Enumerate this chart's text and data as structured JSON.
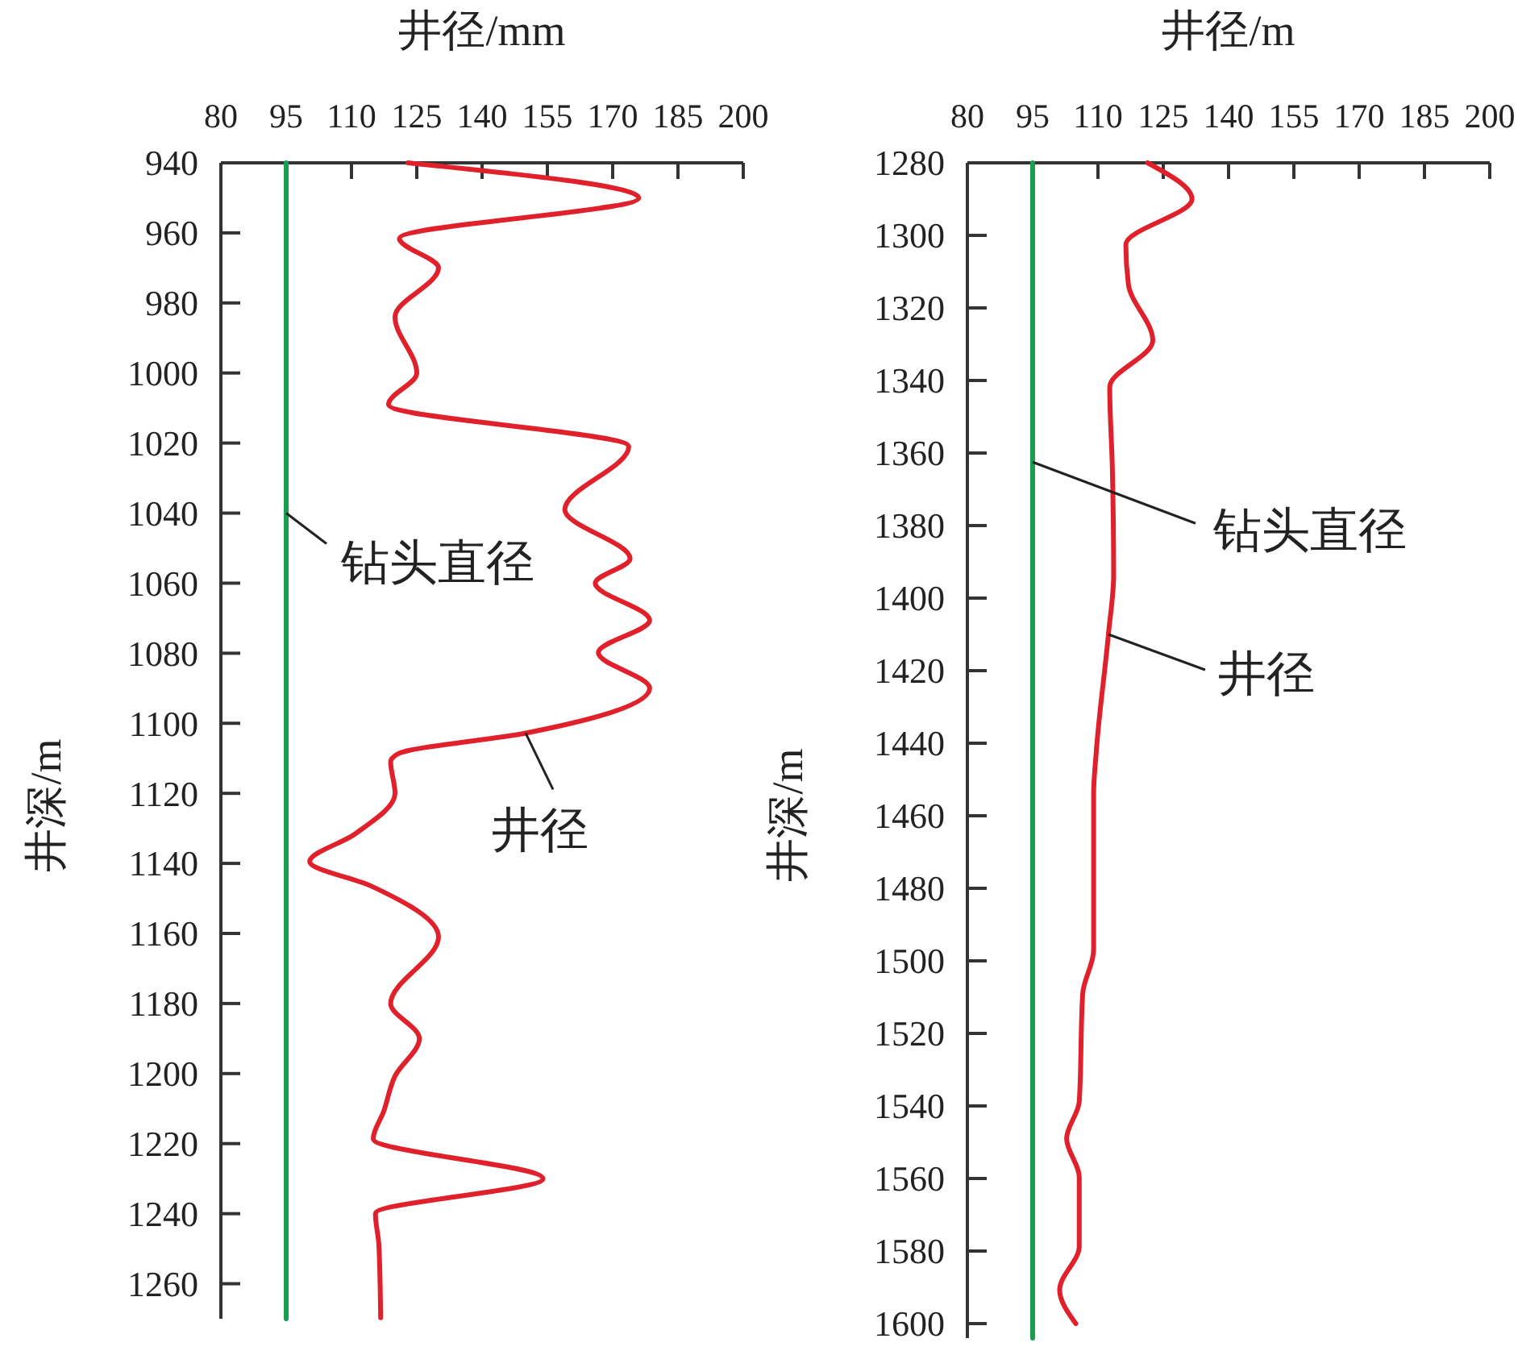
{
  "chart_data": [
    {
      "type": "line",
      "orientation": "horizontal",
      "xlabel": "井径/mm",
      "ylabel": "井深/m",
      "xlim": [
        80,
        200
      ],
      "xticks": [
        80,
        95,
        110,
        125,
        140,
        155,
        170,
        185,
        200
      ],
      "ylim": [
        1270,
        940
      ],
      "yticks": [
        940,
        960,
        980,
        1000,
        1020,
        1040,
        1060,
        1080,
        1100,
        1120,
        1140,
        1160,
        1180,
        1200,
        1220,
        1240,
        1260
      ],
      "series": [
        {
          "color": "#1a9e50",
          "x": [
            940,
            1270
          ],
          "values": [
            95,
            95
          ]
        },
        {
          "color": "#e0202a",
          "x": [
            940,
            950,
            961.6,
            970,
            984,
            1000,
            1009,
            1021,
            1039,
            1053,
            1060,
            1070.6,
            1079.8,
            1090,
            1102.8,
            1108.7,
            1111,
            1120,
            1131.7,
            1139.5,
            1146.4,
            1161,
            1180,
            1190,
            1200.7,
            1210.8,
            1218.6,
            1230,
            1240,
            1249,
            1269.7
          ],
          "values": [
            123,
            176,
            121,
            130,
            120,
            125,
            118.5,
            173.7,
            159,
            174,
            166,
            178.5,
            166.7,
            178.5,
            150,
            120.7,
            119,
            120,
            110.7,
            100.4,
            114.4,
            130,
            119,
            125.6,
            120,
            117.4,
            115,
            154,
            115.5,
            116.3,
            116.7
          ]
        }
      ],
      "annotations": [
        {
          "text": "钻头直径",
          "x": 95,
          "y": 1040
        },
        {
          "text": "井径",
          "x": 150,
          "y": 1102.8
        }
      ]
    },
    {
      "type": "line",
      "orientation": "horizontal",
      "xlabel": "井径/m",
      "ylabel": "井深/m",
      "xlim": [
        80,
        200
      ],
      "xticks": [
        80,
        95,
        110,
        125,
        140,
        155,
        170,
        185,
        200
      ],
      "ylim": [
        1604,
        1280
      ],
      "yticks": [
        1280,
        1300,
        1320,
        1340,
        1360,
        1380,
        1400,
        1420,
        1440,
        1460,
        1480,
        1500,
        1520,
        1540,
        1560,
        1580,
        1600
      ],
      "series": [
        {
          "color": "#1a9e50",
          "x": [
            1280,
            1604
          ],
          "values": [
            95,
            95
          ]
        },
        {
          "color": "#e0202a",
          "x": [
            1280,
            1290,
            1302.5,
            1313.6,
            1329,
            1341.8,
            1364,
            1393.6,
            1410,
            1442.5,
            1454,
            1497,
            1509,
            1538.8,
            1549,
            1559.6,
            1578.7,
            1590.7,
            1600
          ],
          "values": [
            121.4,
            131.6,
            116.4,
            117,
            122.6,
            112.7,
            113.3,
            113.6,
            112.4,
            109.6,
            109,
            109,
            106.5,
            105.7,
            102.8,
            105.7,
            105.7,
            101.2,
            104.9
          ]
        }
      ],
      "annotations": [
        {
          "text": "钻头直径",
          "x": 95,
          "y": 1362.5
        },
        {
          "text": "井径",
          "x": 112.4,
          "y": 1410
        }
      ]
    }
  ]
}
